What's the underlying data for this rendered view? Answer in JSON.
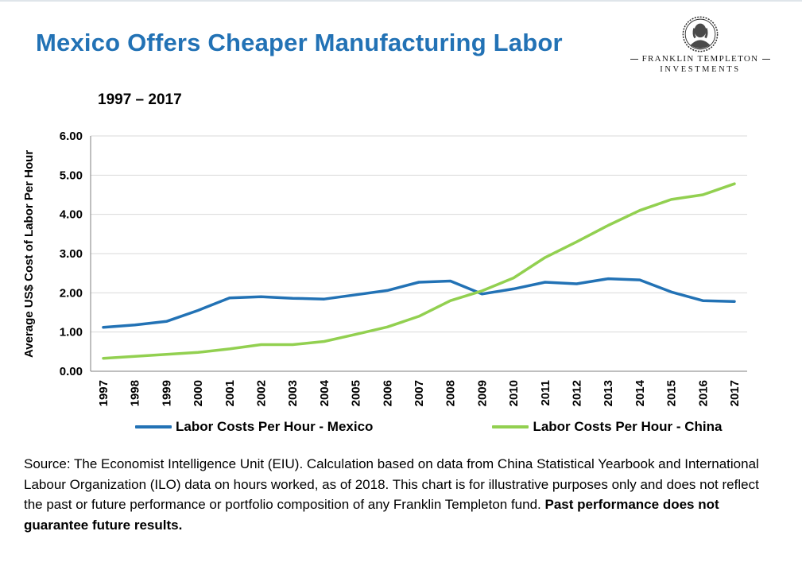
{
  "header": {
    "title": "Mexico Offers Cheaper Manufacturing Labor",
    "logo": {
      "line1": "FRANKLIN TEMPLETON",
      "line2": "INVESTMENTS"
    }
  },
  "chart": {
    "subtitle": "1997 – 2017"
  },
  "chart_data": {
    "type": "line",
    "title": "Mexico Offers Cheaper Manufacturing Labor",
    "subtitle": "1997 – 2017",
    "xlabel": "",
    "ylabel": "Average US$ Cost of Labor Per Hour",
    "ylim": [
      0,
      6
    ],
    "y_ticks": [
      0,
      1,
      2,
      3,
      4,
      5,
      6
    ],
    "y_tick_format": "two-decimal",
    "grid": true,
    "legend_position": "bottom",
    "x": [
      1997,
      1998,
      1999,
      2000,
      2001,
      2002,
      2003,
      2004,
      2005,
      2006,
      2007,
      2008,
      2009,
      2010,
      2011,
      2012,
      2013,
      2014,
      2015,
      2016,
      2017
    ],
    "series": [
      {
        "name": "Labor Costs Per Hour - Mexico",
        "color": "#2272B5",
        "values": [
          1.12,
          1.18,
          1.27,
          1.55,
          1.87,
          1.9,
          1.86,
          1.84,
          1.95,
          2.06,
          2.27,
          2.3,
          1.97,
          2.1,
          2.27,
          2.23,
          2.36,
          2.33,
          2.02,
          1.8,
          1.78
        ]
      },
      {
        "name": "Labor Costs Per Hour - China",
        "color": "#92D050",
        "values": [
          0.33,
          0.38,
          0.43,
          0.48,
          0.57,
          0.68,
          0.68,
          0.76,
          0.94,
          1.13,
          1.4,
          1.8,
          2.05,
          2.38,
          2.9,
          3.3,
          3.72,
          4.1,
          4.38,
          4.5,
          4.78
        ]
      }
    ]
  },
  "footer": {
    "source_text": "Source: The Economist Intelligence Unit (EIU). Calculation based on data from China Statistical Yearbook and International Labour Organization (ILO) data on hours worked, as of 2018. This chart is for illustrative purposes only and does not reflect the past or future performance or portfolio composition of any Franklin Templeton fund. ",
    "disclaimer_bold": "Past performance does not guarantee future results."
  },
  "colors": {
    "accent_blue": "#2272B5",
    "line_mexico": "#2272B5",
    "line_china": "#92D050",
    "grid": "#D9D9D9",
    "axis": "#7F7F7F"
  }
}
